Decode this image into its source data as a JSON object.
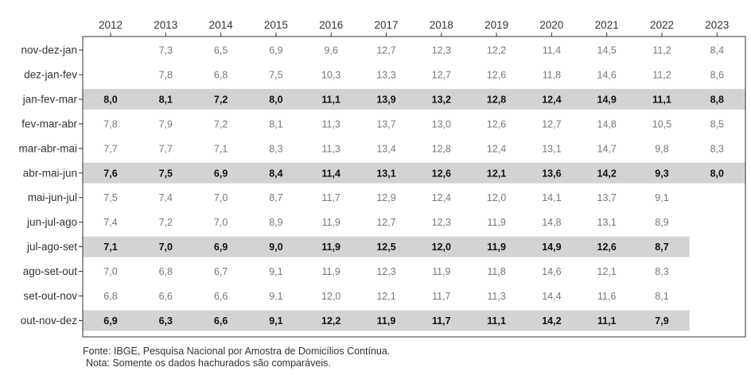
{
  "chart_data": {
    "type": "table",
    "columns": [
      "2012",
      "2013",
      "2014",
      "2015",
      "2016",
      "2017",
      "2018",
      "2019",
      "2020",
      "2021",
      "2022",
      "2023"
    ],
    "rows": [
      {
        "label": "nov-dez-jan",
        "values": [
          "",
          "7,3",
          "6,5",
          "6,9",
          "9,6",
          "12,7",
          "12,3",
          "12,2",
          "11,4",
          "14,5",
          "11,2",
          "8,4"
        ],
        "highlighted": false
      },
      {
        "label": "dez-jan-fev",
        "values": [
          "",
          "7,8",
          "6,8",
          "7,5",
          "10,3",
          "13,3",
          "12,7",
          "12,6",
          "11,8",
          "14,6",
          "11,2",
          "8,6"
        ],
        "highlighted": false
      },
      {
        "label": "jan-fev-mar",
        "values": [
          "8,0",
          "8,1",
          "7,2",
          "8,0",
          "11,1",
          "13,9",
          "13,2",
          "12,8",
          "12,4",
          "14,9",
          "11,1",
          "8,8"
        ],
        "highlighted": true
      },
      {
        "label": "fev-mar-abr",
        "values": [
          "7,8",
          "7,9",
          "7,2",
          "8,1",
          "11,3",
          "13,7",
          "13,0",
          "12,6",
          "12,7",
          "14,8",
          "10,5",
          "8,5"
        ],
        "highlighted": false
      },
      {
        "label": "mar-abr-mai",
        "values": [
          "7,7",
          "7,7",
          "7,1",
          "8,3",
          "11,3",
          "13,4",
          "12,8",
          "12,4",
          "13,1",
          "14,7",
          "9,8",
          "8,3"
        ],
        "highlighted": false
      },
      {
        "label": "abr-mai-jun",
        "values": [
          "7,6",
          "7,5",
          "6,9",
          "8,4",
          "11,4",
          "13,1",
          "12,6",
          "12,1",
          "13,6",
          "14,2",
          "9,3",
          "8,0"
        ],
        "highlighted": true
      },
      {
        "label": "mai-jun-jul",
        "values": [
          "7,5",
          "7,4",
          "7,0",
          "8,7",
          "11,7",
          "12,9",
          "12,4",
          "12,0",
          "14,1",
          "13,7",
          "9,1",
          ""
        ],
        "highlighted": false
      },
      {
        "label": "jun-jul-ago",
        "values": [
          "7,4",
          "7,2",
          "7,0",
          "8,9",
          "11,9",
          "12,7",
          "12,3",
          "11,9",
          "14,8",
          "13,1",
          "8,9",
          ""
        ],
        "highlighted": false
      },
      {
        "label": "jul-ago-set",
        "values": [
          "7,1",
          "7,0",
          "6,9",
          "9,0",
          "11,9",
          "12,5",
          "12,0",
          "11,9",
          "14,9",
          "12,6",
          "8,7",
          ""
        ],
        "highlighted": true
      },
      {
        "label": "ago-set-out",
        "values": [
          "7,0",
          "6,8",
          "6,7",
          "9,1",
          "11,9",
          "12,3",
          "11,9",
          "11,8",
          "14,6",
          "12,1",
          "8,3",
          ""
        ],
        "highlighted": false
      },
      {
        "label": "set-out-nov",
        "values": [
          "6,8",
          "6,6",
          "6,6",
          "9,1",
          "12,0",
          "12,1",
          "11,7",
          "11,3",
          "14,4",
          "11,6",
          "8,1",
          ""
        ],
        "highlighted": false
      },
      {
        "label": "out-nov-dez",
        "values": [
          "6,9",
          "6,3",
          "6,6",
          "9,1",
          "12,2",
          "11,9",
          "11,7",
          "11,1",
          "14,2",
          "11,1",
          "7,9",
          ""
        ],
        "highlighted": true
      }
    ]
  },
  "colors": {
    "highlight_band": "#d3d3d3",
    "text_normal": "#777777",
    "text_bold": "#111111",
    "axis_text": "#333333",
    "border": "#333333"
  },
  "footer": {
    "source": "Fonte: IBGE, Pesquisa Nacional por Amostra de Domicílios Contínua.",
    "note": "Nota: Somente os dados hachurados são comparáveis."
  }
}
